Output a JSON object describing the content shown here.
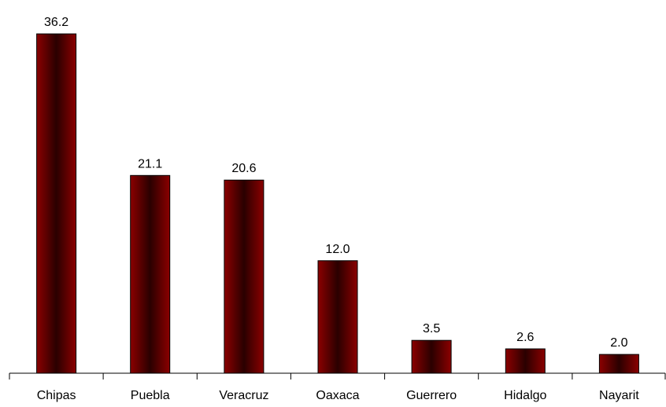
{
  "chart_data": {
    "type": "bar",
    "title": "",
    "xlabel": "",
    "ylabel": "",
    "categories": [
      "Chipas",
      "Puebla",
      "Veracruz",
      "Oaxaca",
      "Guerrero",
      "Hidalgo",
      "Nayarit"
    ],
    "values": [
      36.2,
      21.1,
      20.6,
      12.0,
      3.5,
      2.6,
      2.0
    ],
    "data_labels": [
      "36.2",
      "21.1",
      "20.6",
      "12.0",
      "3.5",
      "2.6",
      "2.0"
    ],
    "ylim": [
      0,
      40
    ],
    "grid": false,
    "legend": "none",
    "bar_color_edge": "#5a0000",
    "bar_color_center": "#2a0000",
    "bar_color_light": "#8b0000",
    "axis_color": "#000000"
  }
}
